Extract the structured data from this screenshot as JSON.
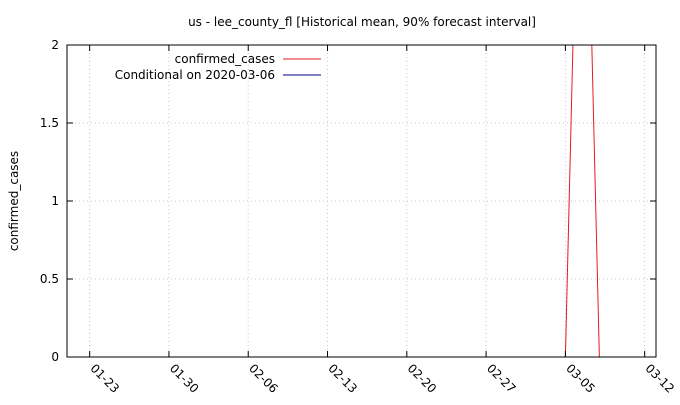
{
  "colors": {
    "observed": "#e41a1c",
    "conditional": "#000080",
    "grid": "#c8c8c8",
    "axis": "#000000"
  },
  "chart_data": {
    "type": "line",
    "title": "us - lee_county_fl [Historical mean, 90% forecast interval]",
    "xlabel": "",
    "ylabel": "confirmed_cases",
    "x_axis": {
      "type": "date",
      "range": [
        "2020-01-21",
        "2020-03-13"
      ],
      "ticks": [
        "2020-01-23",
        "2020-01-30",
        "2020-02-06",
        "2020-02-13",
        "2020-02-20",
        "2020-02-27",
        "2020-03-05",
        "2020-03-12"
      ],
      "tick_labels": [
        "01-23",
        "01-30",
        "02-06",
        "02-13",
        "02-20",
        "02-27",
        "03-05",
        "03-12"
      ]
    },
    "ylim": [
      0,
      2
    ],
    "yticks": [
      0,
      0.5,
      1,
      1.5,
      2
    ],
    "ytick_labels": [
      "0",
      "0.5",
      "1",
      "1.5",
      "2"
    ],
    "grid": true,
    "legend_position": "top-left",
    "series": [
      {
        "name": "confirmed_cases",
        "color": "#e41a1c",
        "points": [
          {
            "x": "2020-03-05",
            "y": 0
          },
          {
            "x": "2020-03-06",
            "y": 3
          },
          {
            "x": "2020-03-07",
            "y": 3
          },
          {
            "x": "2020-03-08",
            "y": 0
          }
        ]
      },
      {
        "name": "Conditional on 2020-03-06",
        "color": "#000080",
        "points": []
      }
    ]
  }
}
